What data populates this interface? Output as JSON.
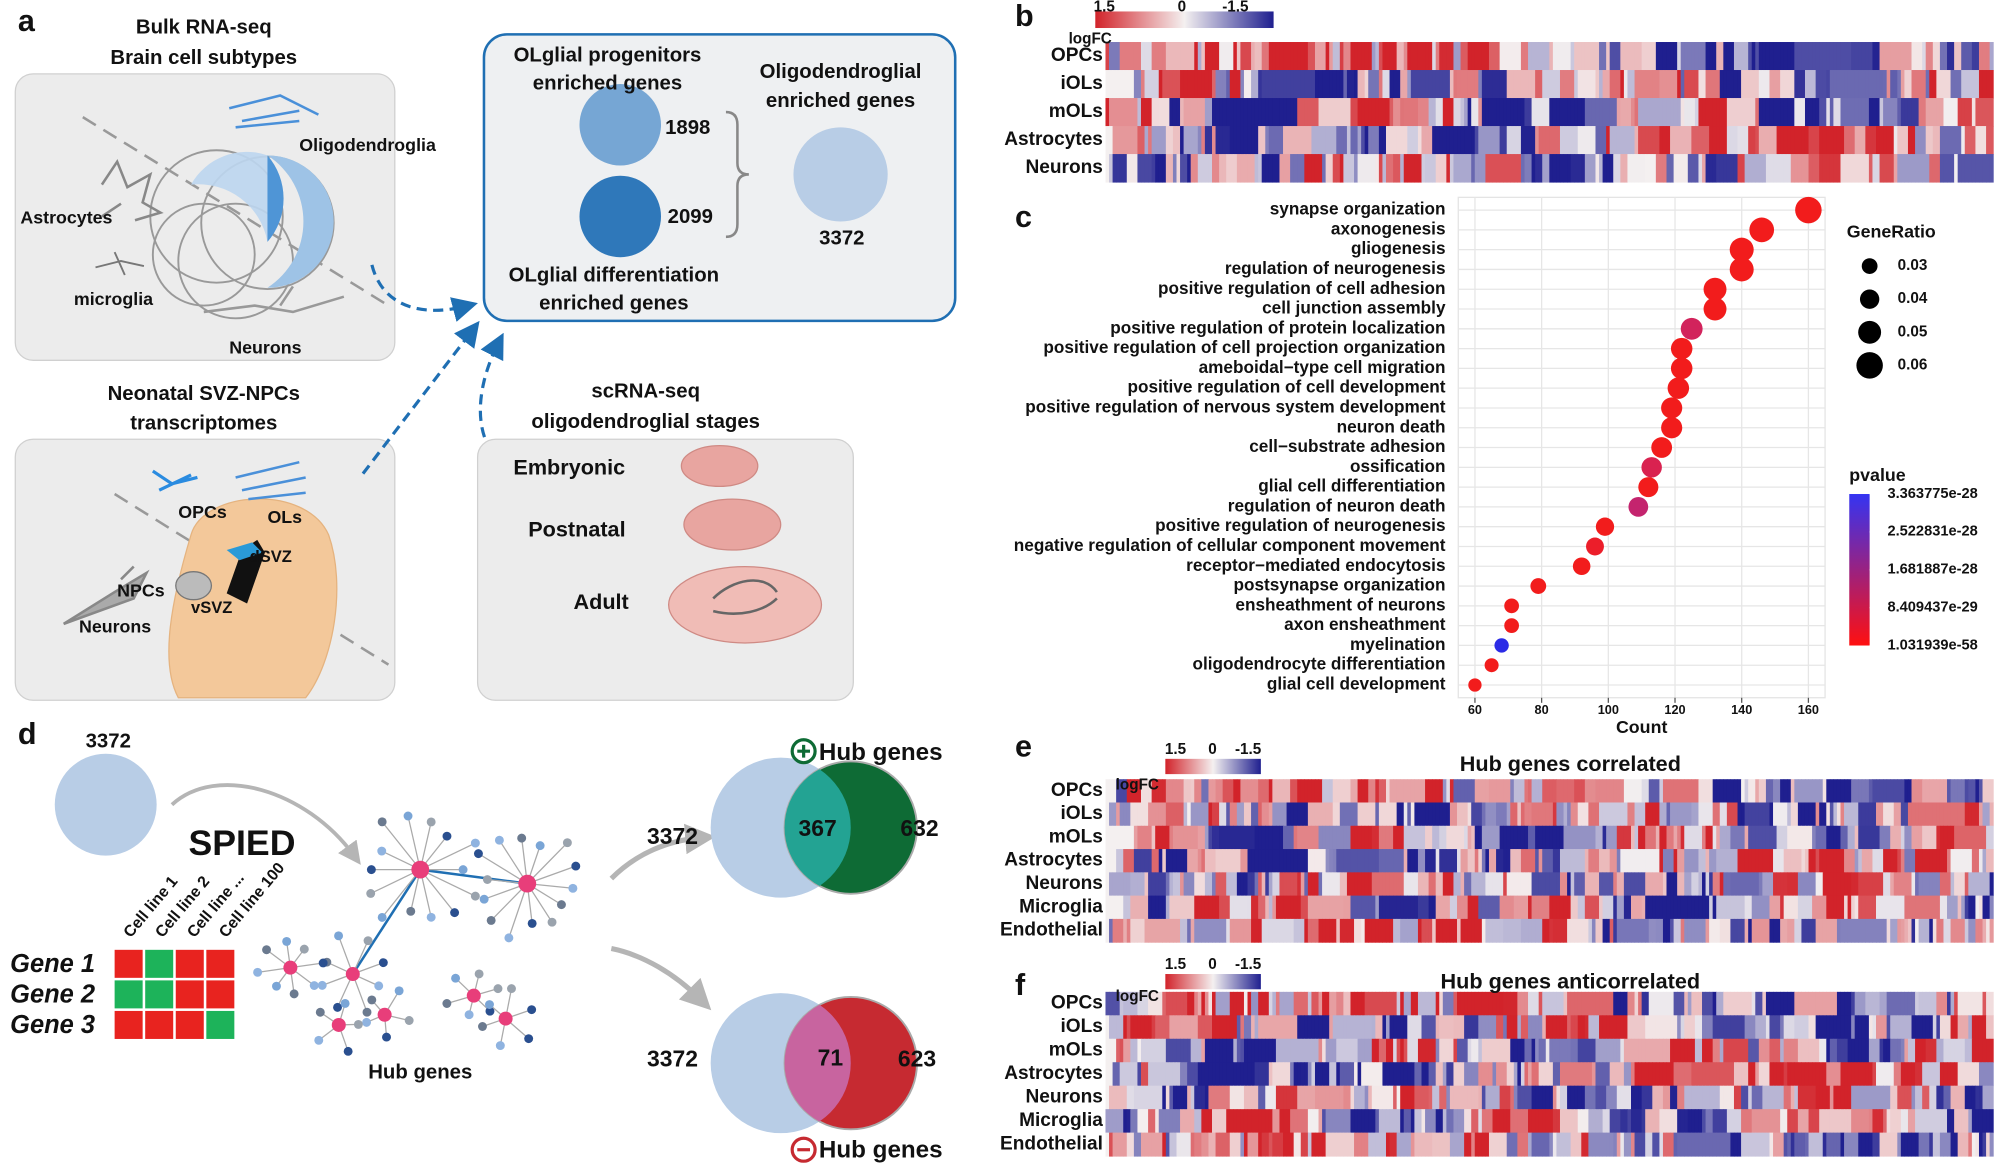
{
  "panel_labels": [
    "a",
    "b",
    "c",
    "d",
    "e",
    "f"
  ],
  "a": {
    "bulk_title": [
      "Bulk RNA-seq",
      "Brain cell subtypes"
    ],
    "bulk_cells": [
      "Oligodendroglia",
      "Astrocytes",
      "microglia",
      "Neurons"
    ],
    "npc_title": [
      "Neonatal SVZ-NPCs",
      "transcriptomes"
    ],
    "npc_cells": [
      "OPCs",
      "OLs",
      "dSVZ",
      "NPCs",
      "vSVZ",
      "Neurons"
    ],
    "progenitors": {
      "label": [
        "OLglial progenitors",
        "enriched genes"
      ],
      "count": 1898
    },
    "differentiation": {
      "label": [
        "OLglial differentiation",
        "enriched genes"
      ],
      "count": 2099
    },
    "oligodendroglial": {
      "label": [
        "Oligodendroglial",
        "enriched genes"
      ],
      "count": 3372
    },
    "sc_title": [
      "scRNA-seq",
      "oligodendroglial stages"
    ],
    "stages": [
      "Embryonic",
      "Postnatal",
      "Adult"
    ]
  },
  "heatmaps": {
    "b": {
      "legend": {
        "title": "logFC",
        "ticks": [
          1.5,
          0,
          -1.5
        ]
      },
      "rows": [
        "OPCs",
        "iOLs",
        "mOLs",
        "Astrocytes",
        "Neurons"
      ]
    },
    "e": {
      "legend": {
        "title": "logFC",
        "ticks": [
          1.5,
          0,
          -1.5
        ]
      },
      "title": "Hub genes correlated",
      "rows": [
        "OPCs",
        "iOLs",
        "mOLs",
        "Astrocytes",
        "Neurons",
        "Microglia",
        "Endothelial"
      ]
    },
    "f": {
      "legend": {
        "title": "logFC",
        "ticks": [
          1.5,
          0,
          -1.5
        ]
      },
      "title": "Hub genes anticorrelated",
      "rows": [
        "OPCs",
        "iOLs",
        "mOLs",
        "Astrocytes",
        "Neurons",
        "Microglia",
        "Endothelial"
      ]
    }
  },
  "chart_data": {
    "type": "scatter",
    "categories": [
      "synapse organization",
      "axonogenesis",
      "gliogenesis",
      "regulation of neurogenesis",
      "positive regulation of cell adhesion",
      "cell junction assembly",
      "positive regulation of protein localization",
      "positive regulation of cell projection organization",
      "ameboidal−type cell migration",
      "positive regulation of cell development",
      "positive regulation of nervous system development",
      "neuron death",
      "cell−substrate adhesion",
      "ossification",
      "glial cell differentiation",
      "regulation of neuron death",
      "positive regulation of neurogenesis",
      "negative regulation of cellular component movement",
      "receptor−mediated endocytosis",
      "postsynapse organization",
      "ensheathment of neurons",
      "axon ensheathment",
      "myelination",
      "oligodendrocyte differentiation",
      "glial cell development"
    ],
    "values": [
      160,
      146,
      140,
      140,
      132,
      132,
      125,
      122,
      122,
      121,
      119,
      119,
      116,
      113,
      112,
      109,
      99,
      96,
      92,
      79,
      71,
      71,
      68,
      65,
      60
    ],
    "sizes": [
      0.06,
      0.055,
      0.053,
      0.053,
      0.05,
      0.05,
      0.047,
      0.046,
      0.046,
      0.046,
      0.045,
      0.045,
      0.044,
      0.043,
      0.042,
      0.041,
      0.037,
      0.036,
      0.035,
      0.03,
      0.027,
      0.027,
      0.026,
      0.025,
      0.023
    ],
    "colors": [
      "#f21c1c",
      "#f21c1c",
      "#f21c1c",
      "#f21c1c",
      "#f21c1c",
      "#f21c1c",
      "#d2235c",
      "#f21c1c",
      "#f21c1c",
      "#f21c1c",
      "#f21c1c",
      "#f21c1c",
      "#f21c1c",
      "#d92250",
      "#f21c1c",
      "#c4246e",
      "#f21c1c",
      "#ec1e2a",
      "#f21c1c",
      "#f21c1c",
      "#f21c1c",
      "#f21c1c",
      "#2b2be6",
      "#f21c1c",
      "#f21c1c"
    ],
    "xlabel": "Count",
    "xlim": [
      55,
      165
    ],
    "xticks": [
      60,
      80,
      100,
      120,
      140,
      160
    ],
    "grid": true,
    "size_title": "GeneRatio",
    "size_ticks": [
      0.03,
      0.04,
      0.05,
      0.06
    ],
    "color_title": "pvalue",
    "clim": [
      1.031939e-58,
      3.363775e-28
    ],
    "color_ticks": [
      3.363775e-28,
      2.522831e-28,
      1.681887e-28,
      8.409437e-29,
      1.031939e-58
    ],
    "colorbar_colors": [
      "#ff1010",
      "#3434f2"
    ]
  },
  "d": {
    "start_count": 3372,
    "method": "SPIED",
    "cell_lines": [
      "Cell line 1",
      "Cell line 2",
      "Cell line ...",
      "Cell line 100"
    ],
    "genes": [
      "Gene 1",
      "Gene 2",
      "Gene 3"
    ],
    "matrix_colors": [
      [
        "#e8231f",
        "#1db35a",
        "#e8231f",
        "#e8231f"
      ],
      [
        "#1db35a",
        "#1db35a",
        "#e8231f",
        "#e8231f"
      ],
      [
        "#e8231f",
        "#e8231f",
        "#e8231f",
        "#1db35a"
      ]
    ],
    "hub_label": "Hub genes",
    "positive": {
      "label": "Hub genes",
      "total": 3372,
      "overlap": 367,
      "hub": 632
    },
    "negative": {
      "label": "Hub genes",
      "total": 3372,
      "overlap": 71,
      "hub": 623
    }
  }
}
